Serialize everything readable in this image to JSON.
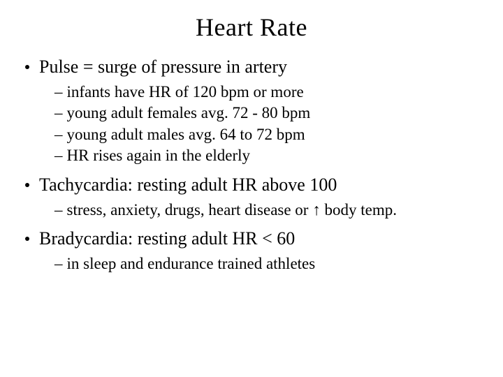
{
  "title": "Heart Rate",
  "bullets": {
    "b1": {
      "text": "Pulse = surge of pressure in artery",
      "sub": [
        "infants have HR of 120 bpm or more",
        "young adult females avg. 72 - 80 bpm",
        "young adult males avg. 64 to 72 bpm",
        "HR rises again in the elderly"
      ]
    },
    "b2": {
      "text": "Tachycardia: resting adult HR above 100",
      "subA_pre": "stress, anxiety, drugs, heart disease or ",
      "subA_arrow": "↑",
      "subA_post": " body temp."
    },
    "b3": {
      "text": "Bradycardia: resting adult HR < 60",
      "sub": [
        "in sleep and endurance trained athletes"
      ]
    }
  },
  "colors": {
    "text": "#000000",
    "background": "#ffffff"
  },
  "typography": {
    "title_fontsize": 36,
    "l1_fontsize": 26,
    "l2_fontsize": 23,
    "font_family": "Georgia, serif"
  }
}
